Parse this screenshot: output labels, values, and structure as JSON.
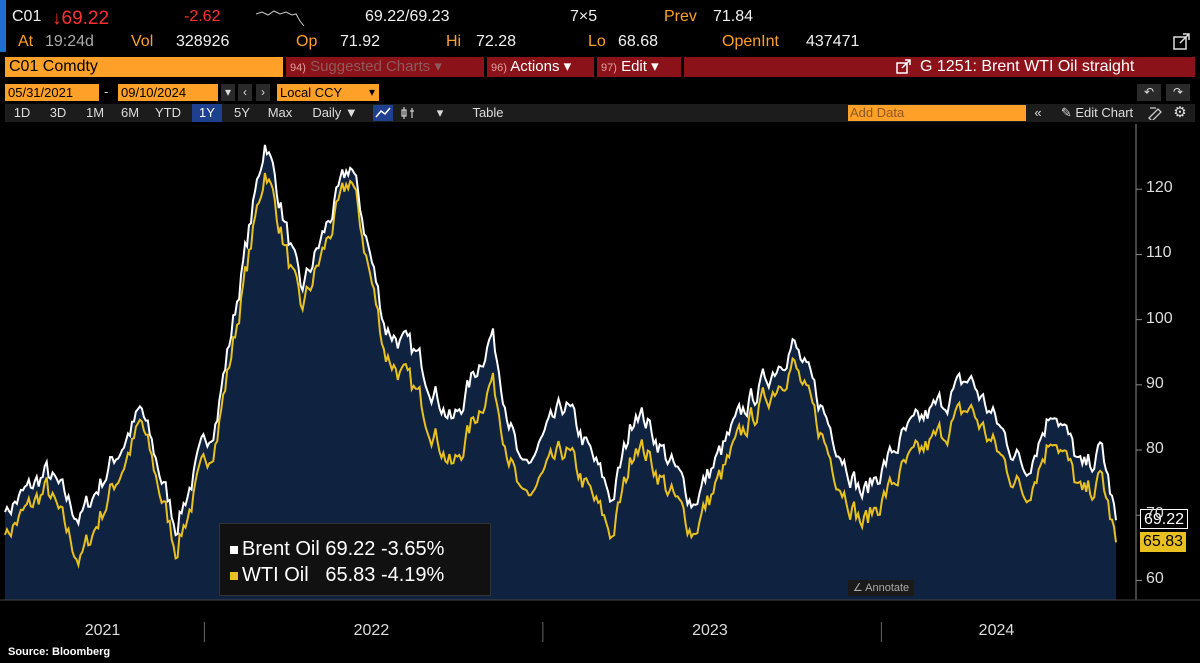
{
  "header": {
    "ticker": "C01",
    "arrow": "↓",
    "last": "69.22",
    "change": "-2.62",
    "bid_ask": "69.22/69.23",
    "size": "7×5",
    "prev_label": "Prev",
    "prev": "71.84",
    "at_label": "At",
    "time": "19:24d",
    "vol_label": "Vol",
    "vol": "328926",
    "op_label": "Op",
    "op": "71.92",
    "hi_label": "Hi",
    "hi": "72.28",
    "lo_label": "Lo",
    "lo": "68.68",
    "oi_label": "OpenInt",
    "oi": "437471"
  },
  "toolbar": {
    "security": "C01 Comdty",
    "suggested_num": "94)",
    "suggested": "Suggested Charts",
    "actions_num": "96)",
    "actions": "Actions",
    "edit_num": "97)",
    "edit": "Edit",
    "chart_title": "G 1251: Brent WTI Oil straight"
  },
  "controls": {
    "start_date": "05/31/2021",
    "end_date": "09/10/2024",
    "currency": "Local CCY",
    "table": "Table",
    "add_data": "Add Data",
    "edit_chart": "Edit Chart",
    "ranges": [
      "1D",
      "3D",
      "1M",
      "6M",
      "YTD",
      "1Y",
      "5Y",
      "Max"
    ],
    "selected_range": "1Y",
    "frequency": "Daily ▼",
    "annotate": "Annotate"
  },
  "footer": {
    "source": "Source: Bloomberg"
  },
  "colors": {
    "brent": "#ffffff",
    "wti": "#e8c020",
    "area": "#0f2340",
    "accent": "#ffa028"
  },
  "chart_data": {
    "type": "area",
    "title": "G 1251: Brent WTI Oil straight",
    "x_range": [
      "2021-05-31",
      "2024-09-10"
    ],
    "x_ticks": [
      "2021",
      "2022",
      "2023",
      "2024"
    ],
    "ylim": [
      57,
      130
    ],
    "y_ticks": [
      60,
      70,
      80,
      90,
      100,
      110,
      120
    ],
    "grid": false,
    "legend_position": "bottom-left",
    "last_values": {
      "brent": "69.22",
      "wti": "65.83"
    },
    "series": [
      {
        "name": "Brent Oil",
        "last": "69.22",
        "pct_change": "-3.65%",
        "dates": [
          "2021-05-31",
          "2021-07-15",
          "2021-08-20",
          "2021-10-25",
          "2021-12-01",
          "2022-01-15",
          "2022-03-08",
          "2022-04-15",
          "2022-06-08",
          "2022-07-15",
          "2022-08-20",
          "2022-09-26",
          "2022-11-07",
          "2022-12-09",
          "2023-01-25",
          "2023-03-17",
          "2023-04-12",
          "2023-06-12",
          "2023-08-10",
          "2023-09-27",
          "2023-11-15",
          "2023-12-12",
          "2024-01-25",
          "2024-04-05",
          "2024-06-04",
          "2024-07-05",
          "2024-08-05",
          "2024-08-26",
          "2024-09-10"
        ],
        "values": [
          70.5,
          76.5,
          69.5,
          86.0,
          68.5,
          86.0,
          128.0,
          104.0,
          124.0,
          99.0,
          94.0,
          84.0,
          98.0,
          76.0,
          87.0,
          72.5,
          87.0,
          72.0,
          87.0,
          96.5,
          81.0,
          73.0,
          82.0,
          91.0,
          77.0,
          87.0,
          76.5,
          80.0,
          69.22
        ]
      },
      {
        "name": "WTI Oil",
        "last": "65.83",
        "pct_change": "-4.19%",
        "dates": [
          "2021-05-31",
          "2021-07-15",
          "2021-08-20",
          "2021-10-25",
          "2021-12-01",
          "2022-01-15",
          "2022-03-08",
          "2022-04-15",
          "2022-06-08",
          "2022-07-15",
          "2022-08-20",
          "2022-09-26",
          "2022-11-07",
          "2022-12-09",
          "2023-01-25",
          "2023-03-17",
          "2023-04-12",
          "2023-06-12",
          "2023-08-10",
          "2023-09-27",
          "2023-11-15",
          "2023-12-12",
          "2024-01-25",
          "2024-04-05",
          "2024-06-04",
          "2024-07-05",
          "2024-08-05",
          "2024-08-26",
          "2024-09-10"
        ],
        "values": [
          67.0,
          74.0,
          63.0,
          84.0,
          65.0,
          83.0,
          123.7,
          101.0,
          122.0,
          95.0,
          88.0,
          77.0,
          91.0,
          71.5,
          80.0,
          67.0,
          82.0,
          67.5,
          84.0,
          93.5,
          76.0,
          68.5,
          77.0,
          86.5,
          73.0,
          83.0,
          72.5,
          75.5,
          65.83
        ]
      }
    ]
  }
}
